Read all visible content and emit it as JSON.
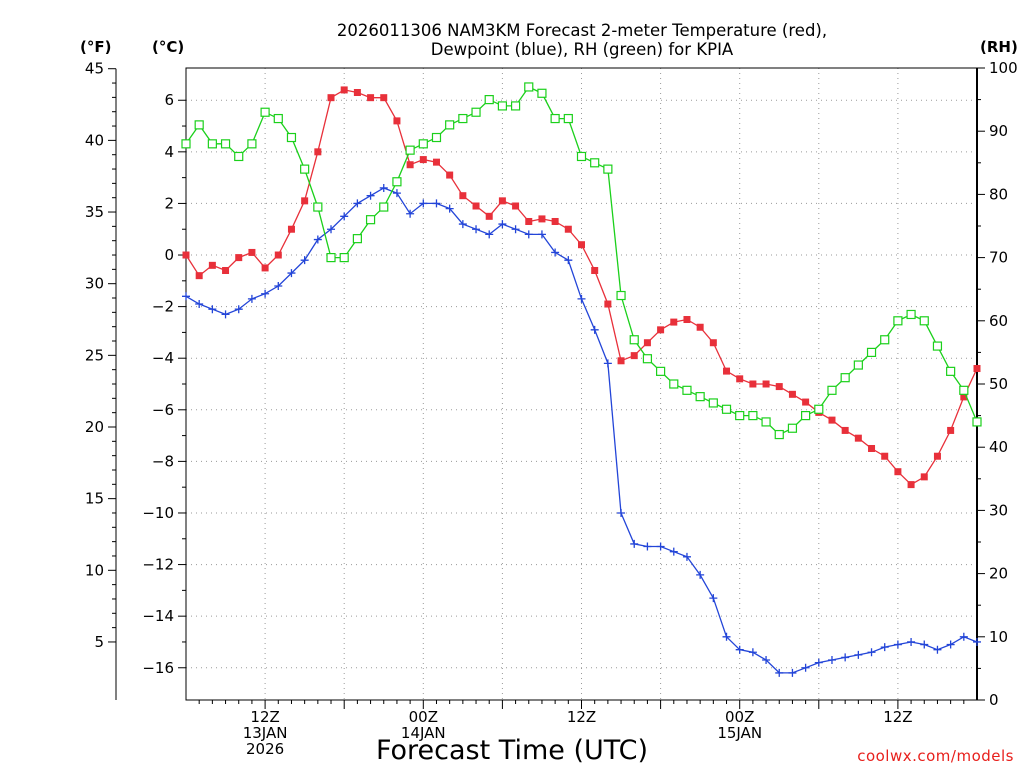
{
  "chart_data": {
    "type": "line",
    "title": "2026011306 NAM3KM Forecast 2-meter Temperature (red),",
    "title_line2": "Dewpoint (blue), RH (green) for KPIA",
    "xlabel": "Forecast Time (UTC)",
    "credit": "coolwx.com/models",
    "left_axes": {
      "fahrenheit_label": "(°F)",
      "celsius_label": "(°C)",
      "fahrenheit_ticks": [
        "45",
        "40",
        "35",
        "30",
        "25",
        "20",
        "15",
        "10",
        "5"
      ],
      "celsius_ticks": [
        "6",
        "4",
        "2",
        "0",
        "−2",
        "−4",
        "−6",
        "−8",
        "−10",
        "−12",
        "−14",
        "−16"
      ],
      "ylim_c": [
        -17.25,
        7.25
      ]
    },
    "right_axis": {
      "label": "(RH)",
      "ticks": [
        "100",
        "90",
        "80",
        "70",
        "60",
        "50",
        "40",
        "30",
        "20",
        "10",
        "0"
      ],
      "ylim": [
        0,
        100
      ]
    },
    "x_ticks": [
      {
        "hour": 12,
        "lines": [
          "12Z",
          "13JAN",
          "2026"
        ]
      },
      {
        "hour": 24,
        "lines": [
          "00Z",
          "14JAN"
        ]
      },
      {
        "hour": 36,
        "lines": [
          "12Z"
        ]
      },
      {
        "hour": 48,
        "lines": [
          "00Z",
          "15JAN"
        ]
      },
      {
        "hour": 60,
        "lines": [
          "12Z"
        ]
      }
    ],
    "x_range_hours": [
      6,
      66
    ],
    "series": [
      {
        "name": "Temperature",
        "unit": "°C",
        "color": "#e8303a",
        "marker": "filled-square",
        "values": [
          0.0,
          -0.8,
          -0.4,
          -0.6,
          -0.1,
          0.1,
          -0.5,
          0.0,
          1.0,
          2.1,
          4.0,
          6.1,
          6.4,
          6.3,
          6.1,
          6.1,
          5.2,
          3.5,
          3.7,
          3.6,
          3.1,
          2.3,
          1.9,
          1.5,
          2.1,
          1.9,
          1.3,
          1.4,
          1.3,
          1.0,
          0.4,
          -0.6,
          -1.9,
          -4.1,
          -3.9,
          -3.4,
          -2.9,
          -2.6,
          -2.5,
          -2.8,
          -3.4,
          -4.5,
          -4.8,
          -5.0,
          -5.0,
          -5.1,
          -5.4,
          -5.7,
          -6.1,
          -6.4,
          -6.8,
          -7.1,
          -7.5,
          -7.8,
          -8.4,
          -8.9,
          -8.6,
          -7.8,
          -6.8,
          -5.5,
          -4.4
        ]
      },
      {
        "name": "Dewpoint",
        "unit": "°C",
        "color": "#2345d8",
        "marker": "plus",
        "values": [
          -1.6,
          -1.9,
          -2.1,
          -2.3,
          -2.1,
          -1.7,
          -1.5,
          -1.2,
          -0.7,
          -0.2,
          0.6,
          1.0,
          1.5,
          2.0,
          2.3,
          2.6,
          2.4,
          1.6,
          2.0,
          2.0,
          1.8,
          1.2,
          1.0,
          0.8,
          1.2,
          1.0,
          0.8,
          0.8,
          0.1,
          -0.2,
          -1.7,
          -2.9,
          -4.2,
          -10.0,
          -11.2,
          -11.3,
          -11.3,
          -11.5,
          -11.7,
          -12.4,
          -13.3,
          -14.8,
          -15.3,
          -15.4,
          -15.7,
          -16.2,
          -16.2,
          -16.0,
          -15.8,
          -15.7,
          -15.6,
          -15.5,
          -15.4,
          -15.2,
          -15.1,
          -15.0,
          -15.1,
          -15.3,
          -15.1,
          -14.8,
          -15.0
        ]
      },
      {
        "name": "RH",
        "unit": "%",
        "color": "#1bd01b",
        "marker": "open-square",
        "values": [
          88,
          91,
          88,
          88,
          86,
          88,
          93,
          92,
          89,
          84,
          78,
          70,
          70,
          73,
          76,
          78,
          82,
          87,
          88,
          89,
          91,
          92,
          93,
          95,
          94,
          94,
          97,
          96,
          92,
          92,
          86,
          85,
          84,
          64,
          57,
          54,
          52,
          50,
          49,
          48,
          47,
          46,
          45,
          45,
          44,
          42,
          43,
          45,
          46,
          49,
          51,
          53,
          55,
          57,
          60,
          61,
          60,
          56,
          52,
          49,
          44
        ]
      }
    ]
  }
}
